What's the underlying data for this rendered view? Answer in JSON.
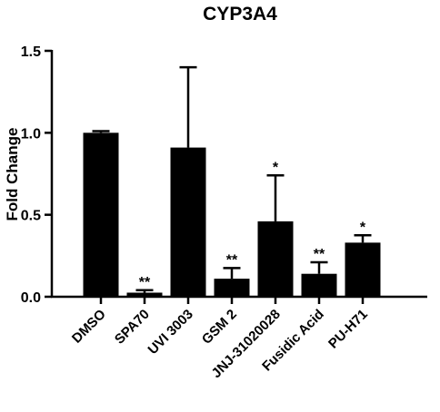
{
  "chart_data": {
    "type": "bar",
    "title": "CYP3A4",
    "xlabel": "",
    "ylabel": "Fold Change",
    "ylim": [
      0,
      1.5
    ],
    "yticks": [
      "0.0",
      "0.5",
      "1.0",
      "1.5"
    ],
    "categories": [
      "DMSO",
      "SPA70",
      "UVI 3003",
      "GSM 2",
      "JNJ-31020028",
      "Fusidic Acid",
      "PU-H71"
    ],
    "values": [
      1.0,
      0.025,
      0.91,
      0.11,
      0.46,
      0.14,
      0.33
    ],
    "errors": [
      0.01,
      0.015,
      0.49,
      0.065,
      0.28,
      0.07,
      0.045
    ],
    "significance": [
      "",
      "**",
      "",
      "**",
      "*",
      "**",
      "*"
    ],
    "bar_color": "#000000",
    "grid": false,
    "legend": "none"
  }
}
